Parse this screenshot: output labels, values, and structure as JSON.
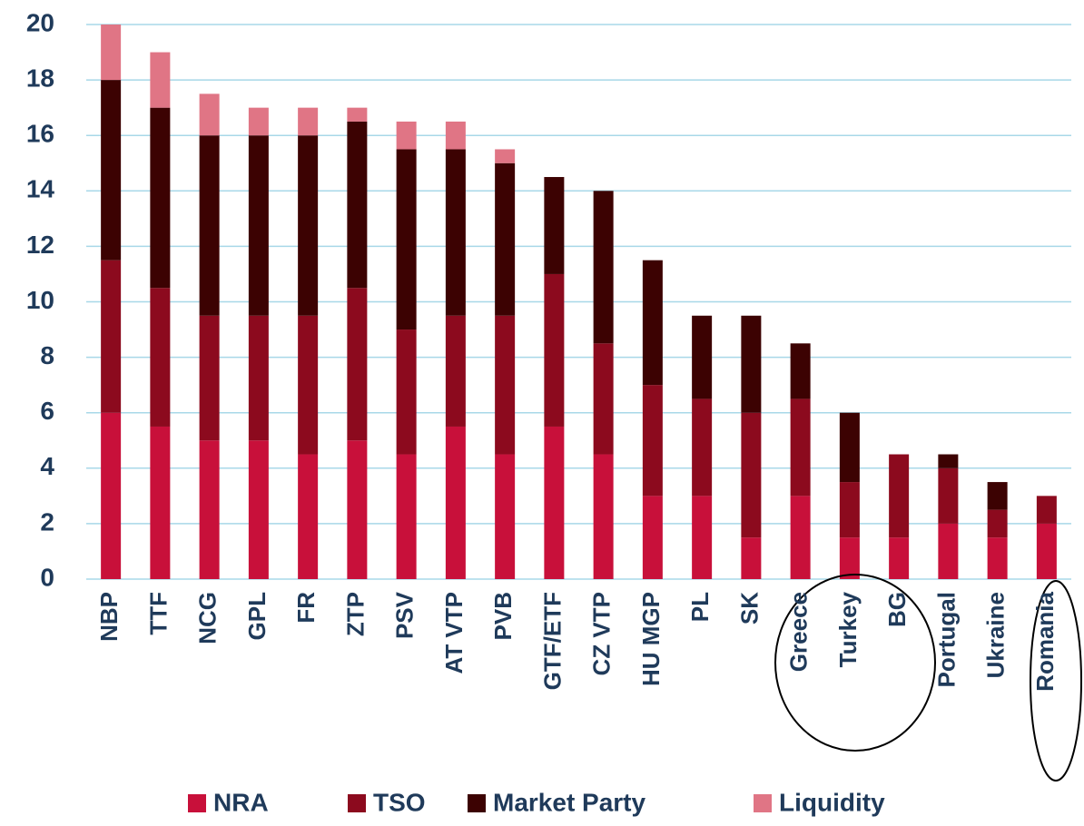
{
  "chart_data": {
    "type": "bar",
    "stacked": true,
    "categories": [
      "NBP",
      "TTF",
      "NCG",
      "GPL",
      "FR",
      "ZTP",
      "PSV",
      "AT VTP",
      "PVB",
      "GTF/ETF",
      "CZ VTP",
      "HU MGP",
      "PL",
      "SK",
      "Greece",
      "Turkey",
      "BG",
      "Portugal",
      "Ukraine",
      "Romania"
    ],
    "series": [
      {
        "name": "NRA",
        "color": "#c8103a",
        "values": [
          6,
          5.5,
          5,
          5,
          4.5,
          5,
          4.5,
          5.5,
          4.5,
          5.5,
          4.5,
          3,
          3,
          1.5,
          3,
          1.5,
          1.5,
          2,
          1.5,
          2
        ]
      },
      {
        "name": "TSO",
        "color": "#8c0a1e",
        "values": [
          5.5,
          5,
          4.5,
          4.5,
          5,
          5.5,
          4.5,
          4,
          5,
          5.5,
          4,
          4,
          3.5,
          4.5,
          3.5,
          2,
          3,
          2,
          1,
          1
        ]
      },
      {
        "name": "Market Party",
        "color": "#3c0202",
        "values": [
          6.5,
          6.5,
          6.5,
          6.5,
          6.5,
          6,
          6.5,
          6,
          5.5,
          3.5,
          5.5,
          4.5,
          3,
          3.5,
          2,
          2.5,
          0,
          0.5,
          1,
          0
        ]
      },
      {
        "name": "Liquidity",
        "color": "#e07585",
        "values": [
          2,
          2,
          1.5,
          1,
          1,
          0.5,
          1,
          1,
          0.5,
          0,
          0,
          0,
          0,
          0,
          0,
          0,
          0,
          0,
          0,
          0
        ]
      }
    ],
    "ylim": [
      0,
      20
    ],
    "yticks": [
      0,
      2,
      4,
      6,
      8,
      10,
      12,
      14,
      16,
      18,
      20
    ],
    "grid": true,
    "legend": "bottom"
  }
}
